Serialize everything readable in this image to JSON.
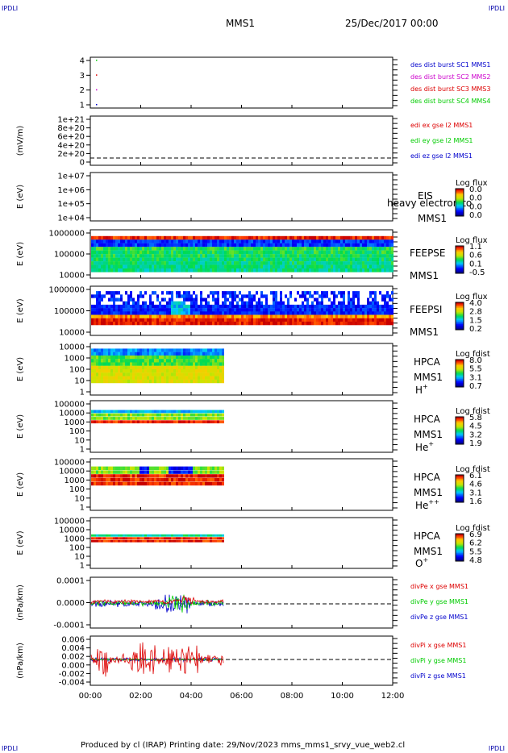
{
  "corner_label": "IPDLI",
  "header": {
    "mission": "MMS1",
    "date_time": "25/Dec/2017 00:00"
  },
  "footer": {
    "text": "Produced by cl (IRAP)   Printing date: 29/Nov/2023   mms_mms1_srvy_vue_web2.cl"
  },
  "colors": {
    "blue": "#0000cc",
    "magenta": "#cc00cc",
    "red": "#dd0000",
    "green": "#00cc00"
  },
  "chart_data": {
    "type": "multi-panel time series",
    "x_tick_labels": [
      "00:00",
      "02:00",
      "04:00",
      "06:00",
      "08:00",
      "10:00",
      "12:00"
    ],
    "panels": [
      {
        "id": "p1",
        "ylabel": "",
        "yticks": [
          "4",
          "3",
          "2",
          "1"
        ],
        "legend": [
          {
            "text": "des dist burst SC1 MMS1",
            "color": "#0000cc"
          },
          {
            "text": "des dist burst SC2 MMS2",
            "color": "#cc00cc"
          },
          {
            "text": "des dist burst SC3 MMS3",
            "color": "#dd0000"
          },
          {
            "text": "des dist burst SC4 MMS4",
            "color": "#00cc00"
          }
        ]
      },
      {
        "id": "p2",
        "ylabel": "(mV/m)",
        "yticks": [
          "1e+21",
          "8e+20",
          "6e+20",
          "4e+20",
          "2e+20",
          "0"
        ],
        "legend": [
          {
            "text": "edi ex gse l2 MMS1",
            "color": "#dd0000"
          },
          {
            "text": "edi ey gse l2 MMS1",
            "color": "#00cc00"
          },
          {
            "text": "edi ez gse l2 MMS1",
            "color": "#0000cc"
          }
        ]
      },
      {
        "id": "p3",
        "ylabel": "E (eV)",
        "yticks": [
          "1e+07",
          "1e+06",
          "1e+05",
          "1e+04"
        ],
        "labels": [
          "EIS",
          "heavy electron to",
          "MMS1"
        ],
        "cbar_title": "Log flux",
        "cbar_ticks": [
          "0.0",
          "0.0",
          "0.0",
          "0.0"
        ]
      },
      {
        "id": "p4",
        "ylabel": "E (eV)",
        "yticks": [
          "1000000",
          "100000",
          "10000"
        ],
        "labels": [
          "FEEPSE",
          "MMS1"
        ],
        "cbar_title": "Log flux",
        "cbar_ticks": [
          "1.1",
          "0.6",
          "0.1",
          "-0.5"
        ]
      },
      {
        "id": "p5",
        "ylabel": "E (eV)",
        "yticks": [
          "1000000",
          "100000",
          "10000"
        ],
        "labels": [
          "FEEPSI",
          "MMS1"
        ],
        "cbar_title": "Log flux",
        "cbar_ticks": [
          "4.0",
          "2.8",
          "1.5",
          "0.2"
        ]
      },
      {
        "id": "p6",
        "ylabel": "E (eV)",
        "yticks": [
          "10000",
          "1000",
          "100",
          "10",
          "1"
        ],
        "labels": [
          "HPCA",
          "MMS1"
        ],
        "species": "H",
        "sup": "+",
        "cbar_title": "Log fdist",
        "cbar_ticks": [
          "8.0",
          "5.5",
          "3.1",
          "0.7"
        ]
      },
      {
        "id": "p7",
        "ylabel": "E (eV)",
        "yticks": [
          "100000",
          "10000",
          "1000",
          "100",
          "10",
          "1"
        ],
        "labels": [
          "HPCA",
          "MMS1"
        ],
        "species": "He",
        "sup": "+",
        "cbar_title": "Log fdist",
        "cbar_ticks": [
          "5.8",
          "4.5",
          "3.2",
          "1.9"
        ]
      },
      {
        "id": "p8",
        "ylabel": "E (eV)",
        "yticks": [
          "100000",
          "10000",
          "1000",
          "100",
          "10",
          "1"
        ],
        "labels": [
          "HPCA",
          "MMS1"
        ],
        "species": "He",
        "sup": "++",
        "cbar_title": "Log fdist",
        "cbar_ticks": [
          "6.1",
          "4.6",
          "3.1",
          "1.6"
        ]
      },
      {
        "id": "p9",
        "ylabel": "E (eV)",
        "yticks": [
          "100000",
          "10000",
          "1000",
          "100",
          "10",
          "1"
        ],
        "labels": [
          "HPCA",
          "MMS1"
        ],
        "species": "O",
        "sup": "+",
        "cbar_title": "Log fdist",
        "cbar_ticks": [
          "6.9",
          "6.2",
          "5.5",
          "4.8"
        ]
      },
      {
        "id": "p10",
        "ylabel": "(nPa/km)",
        "yticks": [
          "0.0001",
          "0.0000",
          "-0.0001"
        ],
        "legend": [
          {
            "text": "divPe x gse MMS1",
            "color": "#dd0000"
          },
          {
            "text": "divPe y gse MMS1",
            "color": "#00cc00"
          },
          {
            "text": "divPe z gse MMS1",
            "color": "#0000cc"
          }
        ]
      },
      {
        "id": "p11",
        "ylabel": "(nPa/km)",
        "yticks": [
          "0.006",
          "0.004",
          "0.002",
          "0.000",
          "-0.002",
          "-0.004"
        ],
        "legend": [
          {
            "text": "divPi x gse MMS1",
            "color": "#dd0000"
          },
          {
            "text": "divPi y gse MMS1",
            "color": "#00cc00"
          },
          {
            "text": "divPi z gse MMS1",
            "color": "#0000cc"
          }
        ]
      }
    ]
  }
}
